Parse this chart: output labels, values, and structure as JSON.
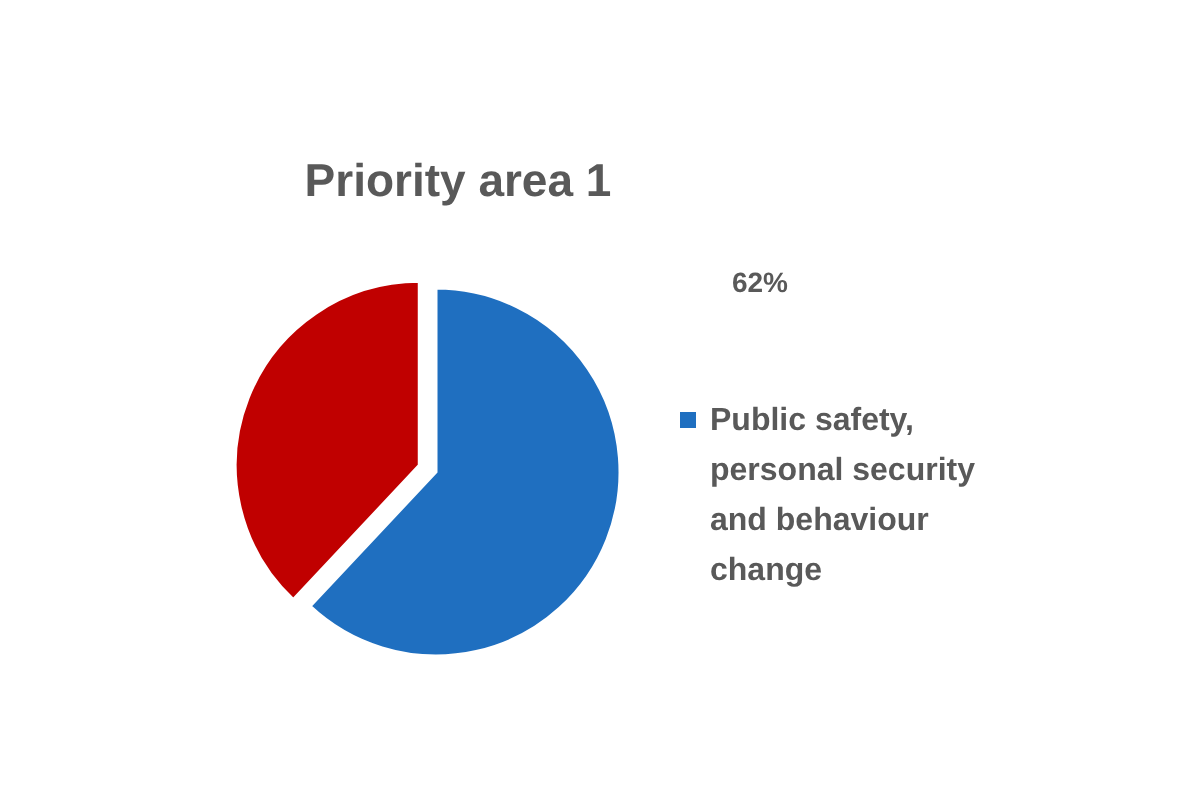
{
  "chart_data": {
    "type": "pie",
    "title": "Priority area 1",
    "categories": [
      "Public safety, personal security and behaviour change",
      null
    ],
    "values": [
      62,
      38
    ],
    "colors": [
      "#1f6fc0",
      "#c00000"
    ],
    "value_labels": [
      "62%",
      null
    ],
    "legend": "right"
  }
}
